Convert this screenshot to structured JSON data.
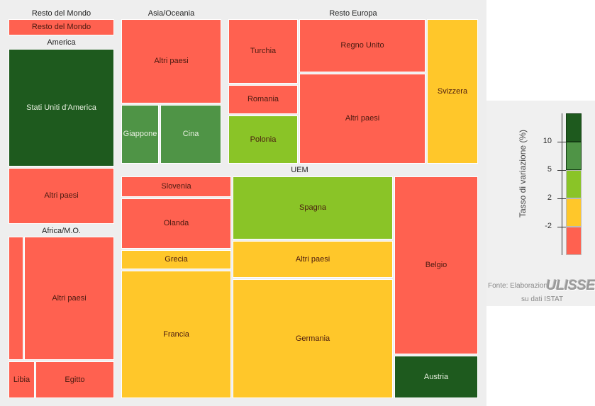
{
  "chart_data": {
    "type": "treemap",
    "title": "",
    "groups": [
      {
        "name": "Resto del Mondo",
        "tiles": [
          {
            "label": "Resto del Mondo",
            "class": "-2 o meno"
          }
        ]
      },
      {
        "name": "America",
        "tiles": [
          {
            "label": "Stati Uniti d'America",
            "class": "10 o più"
          },
          {
            "label": "Altri paesi",
            "class": "-2 o meno"
          }
        ]
      },
      {
        "name": "Africa/M.O.",
        "tiles": [
          {
            "label": "",
            "class": "-2 o meno"
          },
          {
            "label": "Altri paesi",
            "class": "-2 o meno"
          },
          {
            "label": "Libia",
            "class": "-2 o meno"
          },
          {
            "label": "Egitto",
            "class": "-2 o meno"
          }
        ]
      },
      {
        "name": "Asia/Oceania",
        "tiles": [
          {
            "label": "Altri paesi",
            "class": "-2 o meno"
          },
          {
            "label": "Giappone",
            "class": "5 – 10"
          },
          {
            "label": "Cina",
            "class": "5 – 10"
          }
        ]
      },
      {
        "name": "Resto Europa",
        "tiles": [
          {
            "label": "Turchia",
            "class": "-2 o meno"
          },
          {
            "label": "Regno Unito",
            "class": "-2 o meno"
          },
          {
            "label": "Svizzera",
            "class": "-2 – 2"
          },
          {
            "label": "Romania",
            "class": "-2 o meno"
          },
          {
            "label": "Altri paesi",
            "class": "-2 o meno"
          },
          {
            "label": "Polonia",
            "class": "2 – 5"
          }
        ]
      },
      {
        "name": "UEM",
        "tiles": [
          {
            "label": "Slovenia",
            "class": "-2 o meno"
          },
          {
            "label": "Olanda",
            "class": "-2 o meno"
          },
          {
            "label": "Grecia",
            "class": "-2 – 2"
          },
          {
            "label": "Francia",
            "class": "-2 – 2"
          },
          {
            "label": "Spagna",
            "class": "2 – 5"
          },
          {
            "label": "Altri paesi",
            "class": "-2 – 2"
          },
          {
            "label": "Germania",
            "class": "-2 – 2"
          },
          {
            "label": "Belgio",
            "class": "-2 o meno"
          },
          {
            "label": "Austria",
            "class": "10 o più"
          }
        ]
      }
    ],
    "legend": {
      "title": "Tasso di variazione (%)",
      "ticks": [
        "10",
        "5",
        "2",
        "-2"
      ],
      "colors": [
        "#1e5a1e",
        "#4f9446",
        "#8ac427",
        "#ffc72a",
        "#ff6150"
      ]
    }
  },
  "source": {
    "prefix": "Fonte: Elaborazioni",
    "brand": "ULISSE",
    "suffix": "su dati ISTAT"
  }
}
